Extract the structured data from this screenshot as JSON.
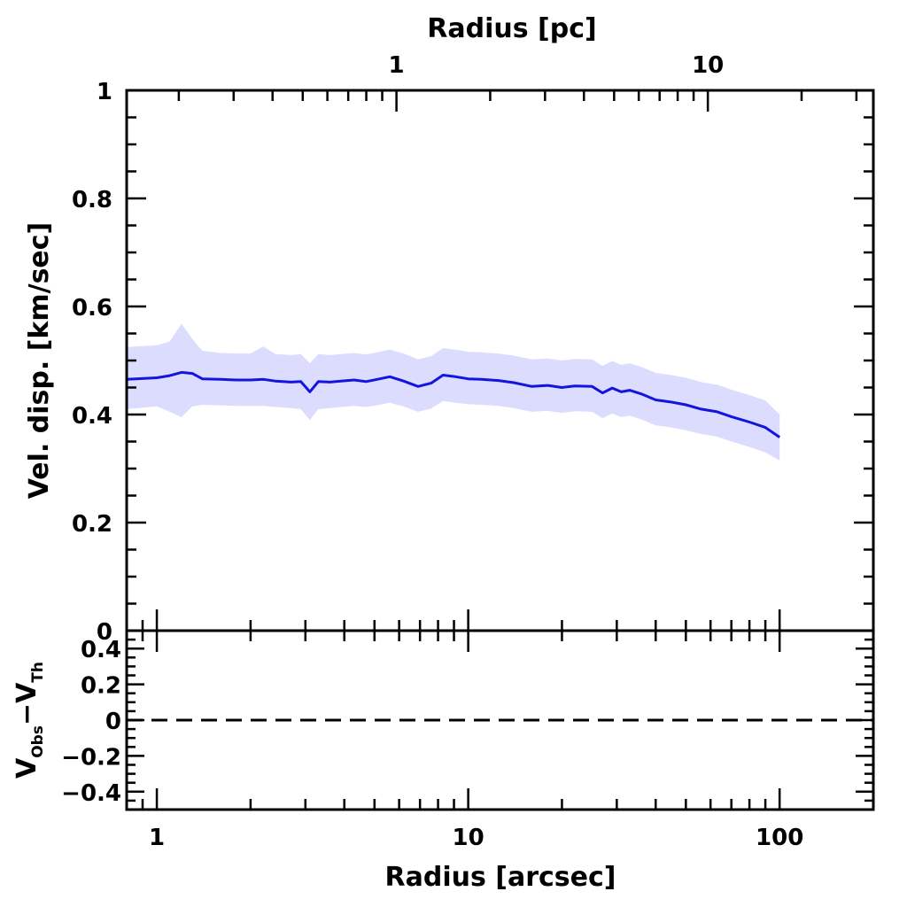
{
  "chart_data": [
    {
      "panel": "main",
      "type": "line",
      "xlabel": "Radius [arcsec]",
      "ylabel": "Vel. disp. [km/sec]",
      "top_xlabel": "Radius [pc]",
      "xscale": "log",
      "xlim": [
        0.8,
        200
      ],
      "ylim": [
        0,
        1
      ],
      "top_axis_scale_pc_per_arcsec": 0.17,
      "y_ticks": [
        "0",
        "0.2",
        "0.4",
        "0.6",
        "0.8",
        "1"
      ],
      "x_ticks_top": [
        "1",
        "10"
      ],
      "grid": false,
      "x": [
        0.8,
        1.0,
        1.1,
        1.2,
        1.3,
        1.4,
        1.6,
        1.8,
        2.0,
        2.2,
        2.4,
        2.7,
        2.9,
        3.1,
        3.3,
        3.6,
        3.9,
        4.3,
        4.7,
        5.1,
        5.6,
        6.2,
        6.9,
        7.6,
        8.3,
        9.1,
        10,
        11,
        12.5,
        14,
        16,
        18,
        20,
        22,
        25,
        27,
        29,
        31,
        33,
        36,
        40,
        45,
        50,
        56,
        63,
        70,
        80,
        90,
        100
      ],
      "series": [
        {
          "values": [
            0.465,
            0.468,
            0.472,
            0.478,
            0.476,
            0.466,
            0.465,
            0.464,
            0.464,
            0.465,
            0.462,
            0.46,
            0.461,
            0.442,
            0.461,
            0.46,
            0.462,
            0.464,
            0.461,
            0.465,
            0.47,
            0.462,
            0.452,
            0.458,
            0.473,
            0.47,
            0.466,
            0.465,
            0.463,
            0.459,
            0.452,
            0.454,
            0.45,
            0.453,
            0.452,
            0.44,
            0.449,
            0.442,
            0.445,
            0.438,
            0.427,
            0.423,
            0.418,
            0.41,
            0.405,
            0.396,
            0.386,
            0.376,
            0.358
          ],
          "lower": [
            0.41,
            0.415,
            0.405,
            0.395,
            0.415,
            0.418,
            0.417,
            0.416,
            0.416,
            0.416,
            0.414,
            0.412,
            0.41,
            0.39,
            0.41,
            0.412,
            0.414,
            0.416,
            0.414,
            0.417,
            0.422,
            0.415,
            0.405,
            0.411,
            0.425,
            0.422,
            0.419,
            0.418,
            0.416,
            0.412,
            0.405,
            0.407,
            0.403,
            0.406,
            0.405,
            0.393,
            0.402,
            0.395,
            0.398,
            0.391,
            0.38,
            0.376,
            0.371,
            0.364,
            0.359,
            0.35,
            0.34,
            0.33,
            0.315
          ],
          "upper": [
            0.525,
            0.528,
            0.535,
            0.568,
            0.54,
            0.518,
            0.514,
            0.513,
            0.513,
            0.526,
            0.512,
            0.51,
            0.512,
            0.495,
            0.512,
            0.51,
            0.512,
            0.514,
            0.511,
            0.515,
            0.52,
            0.513,
            0.502,
            0.508,
            0.523,
            0.52,
            0.516,
            0.515,
            0.513,
            0.509,
            0.502,
            0.504,
            0.5,
            0.503,
            0.502,
            0.49,
            0.499,
            0.492,
            0.495,
            0.488,
            0.477,
            0.473,
            0.468,
            0.46,
            0.455,
            0.446,
            0.436,
            0.426,
            0.4
          ]
        }
      ]
    },
    {
      "panel": "residual",
      "type": "line",
      "xlabel": "Radius [arcsec]",
      "ylabel_parts": {
        "v1": "V",
        "s1": "Obs",
        "dash": "−",
        "v2": "V",
        "s2": "Th"
      },
      "xscale": "log",
      "xlim": [
        0.8,
        200
      ],
      "ylim": [
        -0.5,
        0.5
      ],
      "x_ticks": [
        "1",
        "10",
        "100"
      ],
      "y_ticks": [
        "−0.4",
        "−0.2",
        "0",
        "0.2",
        "0.4"
      ],
      "y_tick_values": [
        -0.4,
        -0.2,
        0,
        0.2,
        0.4
      ],
      "reference_line": 0,
      "reference_style": "dashed"
    }
  ]
}
